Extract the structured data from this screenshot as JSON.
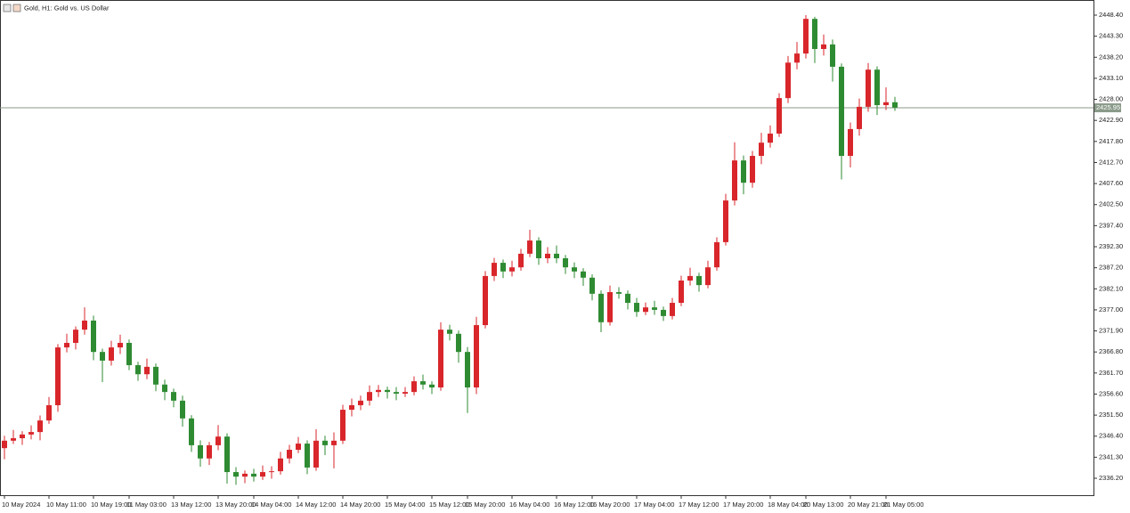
{
  "chart_data": {
    "type": "candlestick",
    "title": "Gold, H1:  Gold vs. US Dollar",
    "up_color": "#d8262b",
    "down_color": "#2e8b32",
    "categories": [
      "10 May 2024",
      null,
      null,
      null,
      null,
      "10 May 11:00",
      null,
      null,
      null,
      null,
      "10 May 19:00",
      null,
      null,
      null,
      "11 May 03:00",
      null,
      null,
      null,
      null,
      "13 May 12:00",
      null,
      null,
      null,
      null,
      "13 May 20:00",
      null,
      null,
      null,
      "14 May 04:00",
      null,
      null,
      null,
      null,
      "14 May 12:00",
      null,
      null,
      null,
      null,
      "14 May 20:00",
      null,
      null,
      null,
      null,
      "15 May 04:00",
      null,
      null,
      null,
      null,
      "15 May 12:00",
      null,
      null,
      null,
      "15 May 20:00",
      null,
      null,
      null,
      null,
      "16 May 04:00",
      null,
      null,
      null,
      null,
      "16 May 12:00",
      null,
      null,
      null,
      "16 May 20:00",
      null,
      null,
      null,
      null,
      "17 May 04:00",
      null,
      null,
      null,
      null,
      "17 May 12:00",
      null,
      null,
      null,
      null,
      "17 May 20:00",
      null,
      null,
      null,
      null,
      "18 May 04:00",
      null,
      null,
      null,
      "20 May 13:00",
      null,
      null,
      null,
      null,
      "20 May 21:00",
      null,
      null,
      null,
      "21 May 05:00",
      null
    ],
    "open": [
      2343.5,
      2345.3,
      2345.9,
      2346.8,
      2347.4,
      2350.2,
      2353.9,
      2367.9,
      2369.0,
      2372.2,
      2374.4,
      2366.8,
      2364.7,
      2367.9,
      2369.0,
      2363.6,
      2361.4,
      2363.2,
      2358.9,
      2357.1,
      2355.0,
      2350.7,
      2344.2,
      2341.0,
      2344.2,
      2346.3,
      2337.7,
      2336.6,
      2337.3,
      2336.6,
      2337.7,
      2337.9,
      2341.0,
      2343.1,
      2344.6,
      2338.8,
      2345.3,
      2344.2,
      2345.3,
      2352.8,
      2353.9,
      2355.0,
      2357.1,
      2357.6,
      2357.1,
      2356.7,
      2357.1,
      2359.7,
      2358.9,
      2358.2,
      2372.2,
      2371.2,
      2366.8,
      2358.2,
      2373.3,
      2385.2,
      2388.4,
      2386.3,
      2387.3,
      2390.6,
      2393.8,
      2389.5,
      2390.6,
      2389.5,
      2387.3,
      2386.3,
      2384.8,
      2380.9,
      2374.0,
      2381.3,
      2380.9,
      2378.7,
      2376.5,
      2377.6,
      2377.0,
      2375.5,
      2378.7,
      2384.1,
      2385.2,
      2383.0,
      2387.3,
      2393.4,
      2403.5,
      2413.2,
      2407.8,
      2414.3,
      2417.5,
      2419.7,
      2428.3,
      2436.9,
      2439.1,
      2447.5,
      2440.2,
      2441.3,
      2435.9,
      2414.3,
      2420.8,
      2426.2,
      2435.2,
      2426.6,
      2427.3
    ],
    "high": [
      2346.5,
      2347.9,
      2347.6,
      2349.0,
      2351.4,
      2355.9,
      2368.7,
      2371.2,
      2373.0,
      2377.6,
      2375.6,
      2367.6,
      2369.5,
      2371.0,
      2369.8,
      2364.4,
      2365.2,
      2364.0,
      2360.1,
      2357.9,
      2356.2,
      2351.5,
      2345.4,
      2345.0,
      2349.1,
      2347.1,
      2338.9,
      2338.1,
      2338.5,
      2339.3,
      2339.1,
      2342.6,
      2344.3,
      2346.2,
      2345.4,
      2348.1,
      2346.5,
      2347.3,
      2354.0,
      2355.5,
      2356.2,
      2358.7,
      2358.8,
      2358.4,
      2358.3,
      2358.3,
      2360.9,
      2361.3,
      2359.7,
      2374.0,
      2373.4,
      2372.0,
      2368.0,
      2375.3,
      2386.4,
      2389.6,
      2389.2,
      2388.9,
      2391.8,
      2396.4,
      2394.6,
      2392.2,
      2392.6,
      2390.3,
      2388.5,
      2387.1,
      2385.6,
      2381.7,
      2382.9,
      2382.5,
      2381.7,
      2379.9,
      2378.8,
      2379.2,
      2377.8,
      2379.9,
      2385.3,
      2387.2,
      2386.0,
      2388.9,
      2394.6,
      2405.1,
      2417.6,
      2414.4,
      2415.5,
      2419.9,
      2421.7,
      2429.5,
      2438.5,
      2441.9,
      2448.4,
      2448.0,
      2443.7,
      2442.5,
      2436.7,
      2422.4,
      2428.2,
      2436.8,
      2436.0,
      2430.9,
      2428.6
    ],
    "low": [
      2340.8,
      2344.5,
      2344.3,
      2345.6,
      2345.4,
      2349.4,
      2352.3,
      2366.7,
      2367.4,
      2371.0,
      2364.8,
      2359.5,
      2363.5,
      2366.3,
      2362.4,
      2359.8,
      2360.2,
      2357.3,
      2355.1,
      2353.4,
      2348.7,
      2342.6,
      2339.0,
      2339.4,
      2343.0,
      2334.9,
      2334.6,
      2335.0,
      2335.4,
      2335.8,
      2336.1,
      2337.1,
      2339.8,
      2342.3,
      2337.2,
      2338.0,
      2341.8,
      2338.6,
      2344.5,
      2351.2,
      2352.7,
      2353.8,
      2355.9,
      2355.5,
      2355.1,
      2355.9,
      2356.3,
      2357.7,
      2356.6,
      2357.4,
      2369.6,
      2364.2,
      2352.0,
      2356.6,
      2372.5,
      2384.0,
      2384.7,
      2385.1,
      2386.5,
      2389.8,
      2387.9,
      2388.3,
      2388.3,
      2385.7,
      2384.7,
      2382.8,
      2379.3,
      2371.6,
      2373.2,
      2379.7,
      2377.1,
      2375.3,
      2375.7,
      2375.8,
      2374.3,
      2374.7,
      2377.9,
      2382.9,
      2381.4,
      2382.2,
      2386.5,
      2392.6,
      2402.3,
      2405.0,
      2406.6,
      2412.3,
      2416.3,
      2418.9,
      2427.1,
      2435.3,
      2437.9,
      2436.8,
      2438.6,
      2432.3,
      2408.6,
      2411.5,
      2419.2,
      2425.0,
      2424.2,
      2425.4,
      2425.2
    ],
    "close": [
      2345.3,
      2345.9,
      2346.8,
      2347.4,
      2350.2,
      2353.9,
      2367.9,
      2369.0,
      2372.2,
      2374.4,
      2366.8,
      2364.7,
      2367.9,
      2369.0,
      2363.6,
      2361.4,
      2363.2,
      2358.9,
      2357.1,
      2355.0,
      2350.7,
      2344.2,
      2341.0,
      2344.2,
      2346.3,
      2337.7,
      2336.6,
      2337.3,
      2336.6,
      2337.7,
      2337.9,
      2341.0,
      2343.1,
      2344.6,
      2338.8,
      2345.3,
      2344.2,
      2345.3,
      2352.8,
      2353.9,
      2355.0,
      2357.1,
      2357.6,
      2357.1,
      2356.7,
      2357.1,
      2359.7,
      2358.9,
      2358.2,
      2372.2,
      2371.2,
      2366.8,
      2358.2,
      2373.3,
      2385.2,
      2388.4,
      2386.3,
      2387.3,
      2390.6,
      2393.8,
      2389.5,
      2390.6,
      2389.5,
      2387.3,
      2386.3,
      2384.8,
      2380.9,
      2374.0,
      2381.3,
      2380.9,
      2378.7,
      2376.5,
      2377.6,
      2377.0,
      2375.5,
      2378.7,
      2384.1,
      2385.2,
      2383.0,
      2387.3,
      2393.4,
      2403.5,
      2413.2,
      2407.8,
      2414.3,
      2417.5,
      2419.7,
      2428.3,
      2436.9,
      2439.1,
      2447.5,
      2440.2,
      2441.3,
      2435.9,
      2414.3,
      2420.8,
      2426.2,
      2435.2,
      2426.6,
      2427.3,
      2426.0
    ],
    "ylim": [
      2332.1,
      2452.07
    ],
    "yticks": [
      {
        "value": 2448.4,
        "label": "2448.40"
      },
      {
        "value": 2443.3,
        "label": "2443.30"
      },
      {
        "value": 2438.2,
        "label": "2438.20"
      },
      {
        "value": 2433.1,
        "label": "2433.10"
      },
      {
        "value": 2428.0,
        "label": "2428.00"
      },
      {
        "value": 2422.9,
        "label": "2422.90"
      },
      {
        "value": 2417.8,
        "label": "2417.80"
      },
      {
        "value": 2412.7,
        "label": "2412.70"
      },
      {
        "value": 2407.6,
        "label": "2407.60"
      },
      {
        "value": 2402.5,
        "label": "2402.50"
      },
      {
        "value": 2397.4,
        "label": "2397.40"
      },
      {
        "value": 2392.3,
        "label": "2392.30"
      },
      {
        "value": 2387.2,
        "label": "2387.20"
      },
      {
        "value": 2382.1,
        "label": "2382.10"
      },
      {
        "value": 2377.0,
        "label": "2377.00"
      },
      {
        "value": 2371.9,
        "label": "2371.90"
      },
      {
        "value": 2366.8,
        "label": "2366.80"
      },
      {
        "value": 2361.7,
        "label": "2361.70"
      },
      {
        "value": 2356.6,
        "label": "2356.60"
      },
      {
        "value": 2351.5,
        "label": "2351.50"
      },
      {
        "value": 2346.4,
        "label": "2346.40"
      },
      {
        "value": 2341.3,
        "label": "2341.30"
      },
      {
        "value": 2336.2,
        "label": "2336.20"
      }
    ],
    "current_price": {
      "value": 2425.95,
      "label": "2425.95"
    },
    "grid": false
  }
}
